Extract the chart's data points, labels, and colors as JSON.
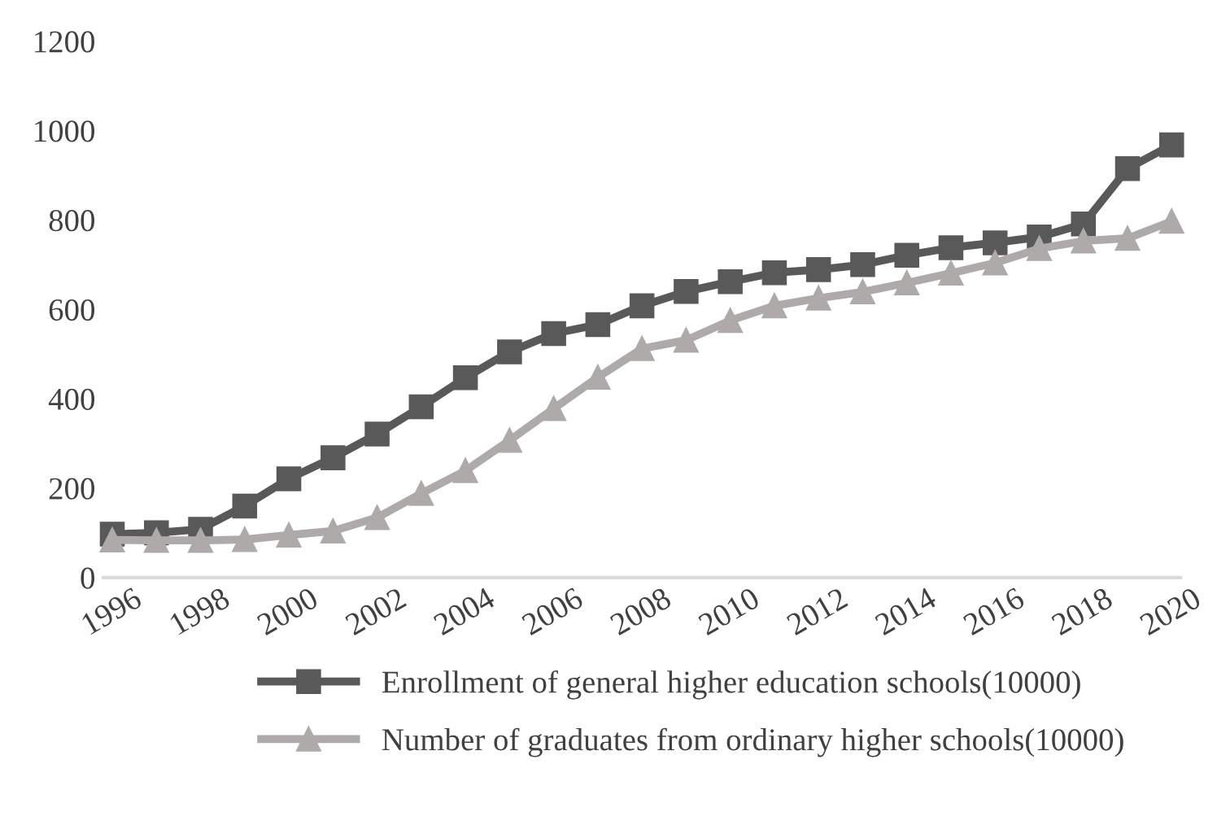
{
  "chart_data": {
    "type": "line",
    "categories": [
      "1996",
      null,
      "1998",
      null,
      "2000",
      null,
      "2002",
      null,
      "2004",
      null,
      "2006",
      null,
      "2008",
      null,
      "2010",
      null,
      "2012",
      null,
      "2014",
      null,
      "2016",
      null,
      "2018",
      null,
      "2020"
    ],
    "series": [
      {
        "name": "Enrollment of general higher education schools(10000)",
        "color": "#595959",
        "marker": "square",
        "values": [
          97,
          100,
          108,
          160,
          221,
          268,
          321,
          382,
          447,
          505,
          546,
          566,
          608,
          640,
          662,
          682,
          689,
          700,
          721,
          738,
          749,
          762,
          791,
          915,
          968
        ]
      },
      {
        "name": "Number of graduates from ordinary higher schools(10000)",
        "color": "#aeaaaa",
        "marker": "triangle",
        "values": [
          84,
          83,
          83,
          85,
          95,
          104,
          134,
          188,
          239,
          307,
          378,
          448,
          512,
          531,
          575,
          608,
          625,
          639,
          659,
          681,
          704,
          736,
          753,
          759,
          797
        ]
      }
    ],
    "ylim": [
      0,
      1200
    ],
    "yticks": [
      0,
      200,
      400,
      600,
      800,
      1000,
      1200
    ],
    "grid": false,
    "legend": "bottom",
    "line_style": "solid"
  }
}
